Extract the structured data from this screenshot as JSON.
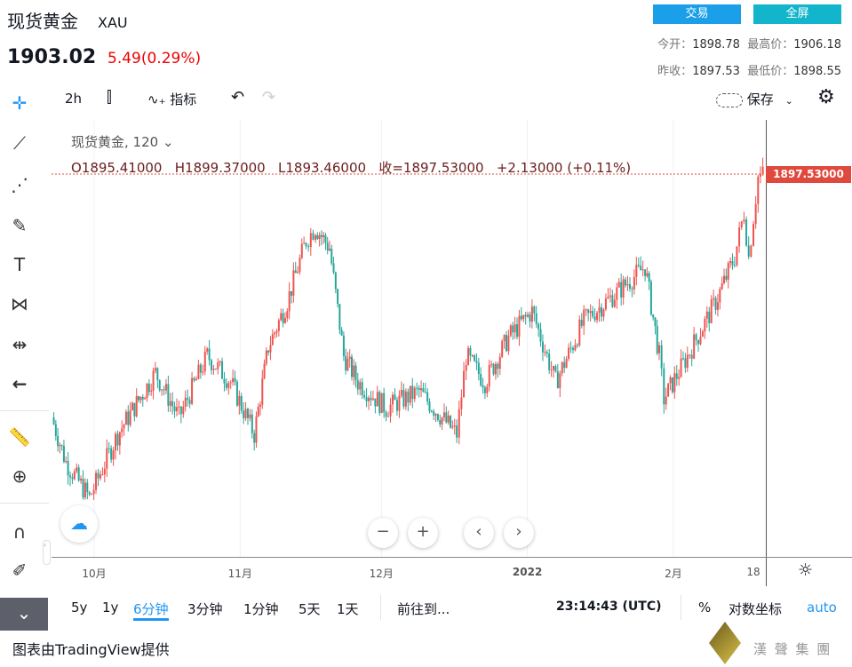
{
  "header": {
    "title": "现货黄金",
    "symbol": "XAU",
    "price": "1903.02",
    "change": "5.49(0.29%)",
    "trade_btn": "交易",
    "fullscreen_btn": "全屏",
    "stats": [
      {
        "k": "今开：",
        "v": "1898.78"
      },
      {
        "k": "最高价：",
        "v": "1906.18"
      },
      {
        "k": "昨收：",
        "v": "1897.53"
      },
      {
        "k": "最低价：",
        "v": "1898.55"
      }
    ]
  },
  "toolbar": {
    "interval": "2h",
    "indicators": "指标",
    "save": "保存"
  },
  "legend": {
    "name": "现货黄金, 120",
    "ohlc": "O1895.41000   H1899.37000   L1893.46000   收=1897.53000   +2.13000 (+0.11%)"
  },
  "price_label": "1897.53000",
  "colors": {
    "up": "#ef5350",
    "down": "#26a69a",
    "accent": "#2196f3",
    "trade": "#1a9fe8",
    "fullscreen": "#12b5cb"
  },
  "chart_data": {
    "type": "candlestick",
    "xlabels": [
      "10月",
      "11月",
      "12月",
      "2022",
      "2月",
      "18"
    ],
    "xlabel_days": [
      0,
      31,
      61,
      92,
      123,
      140
    ],
    "close_anchors": [
      [
        -9,
        1767
      ],
      [
        -6,
        1743
      ],
      [
        -1,
        1724
      ],
      [
        5,
        1758
      ],
      [
        13,
        1791
      ],
      [
        18,
        1767
      ],
      [
        24,
        1800
      ],
      [
        29,
        1786
      ],
      [
        34,
        1758
      ],
      [
        37,
        1805
      ],
      [
        41,
        1829
      ],
      [
        45,
        1862
      ],
      [
        47,
        1869
      ],
      [
        50,
        1858
      ],
      [
        53,
        1800
      ],
      [
        56,
        1786
      ],
      [
        62,
        1772
      ],
      [
        69,
        1781
      ],
      [
        77,
        1758
      ],
      [
        79,
        1800
      ],
      [
        83,
        1786
      ],
      [
        88,
        1810
      ],
      [
        93,
        1824
      ],
      [
        98,
        1786
      ],
      [
        104,
        1819
      ],
      [
        111,
        1834
      ],
      [
        117,
        1848
      ],
      [
        120,
        1800
      ],
      [
        121,
        1777
      ],
      [
        126,
        1800
      ],
      [
        132,
        1829
      ],
      [
        136,
        1853
      ],
      [
        138,
        1877
      ],
      [
        139,
        1853
      ],
      [
        141,
        1896
      ],
      [
        142,
        1897.53
      ]
    ],
    "last": 1897.53
  },
  "bottom": {
    "ranges": [
      "5y",
      "1y",
      "6分钟",
      "3分钟",
      "1分钟",
      "5天",
      "1天"
    ],
    "goto": "前往到...",
    "time": "23:14:43 (UTC)",
    "pct": "%",
    "log": "对数坐标",
    "auto": "auto"
  },
  "footer": {
    "credit": "图表由TradingView提供",
    "logo_text": "漢 聲 集 團"
  }
}
